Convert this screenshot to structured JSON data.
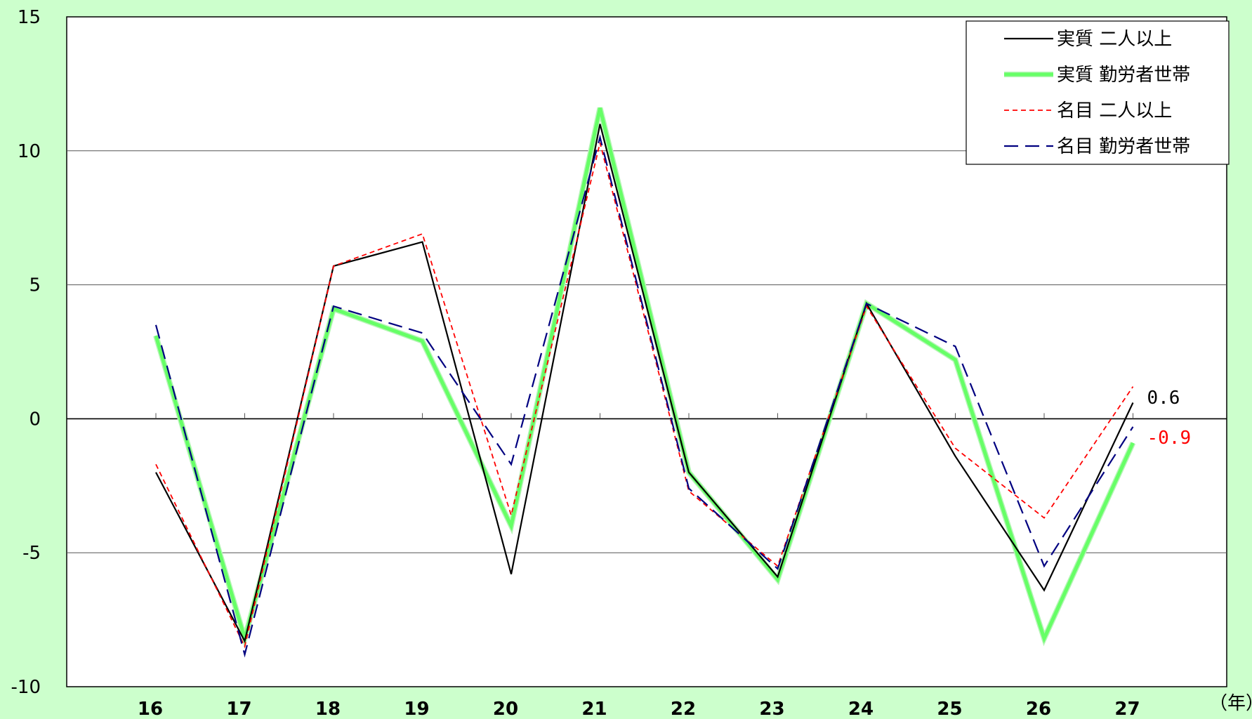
{
  "chart_data": {
    "type": "line",
    "title": "",
    "xlabel": "",
    "ylabel": "",
    "x_unit_label": "（年）",
    "categories": [
      "16",
      "17",
      "18",
      "19",
      "20",
      "21",
      "22",
      "23",
      "24",
      "25",
      "26",
      "27"
    ],
    "ylim": [
      -10,
      15
    ],
    "yticks": [
      15,
      10,
      5,
      0,
      -5,
      -10
    ],
    "grid": true,
    "legend_position": "top-right",
    "series": [
      {
        "name": "実質 二人以上",
        "color": "#000000",
        "style": "solid",
        "values": [
          -2.0,
          -8.3,
          5.7,
          6.6,
          -5.8,
          11.0,
          -2.0,
          -5.9,
          4.3,
          -1.4,
          -6.4,
          0.6
        ]
      },
      {
        "name": "実質 勤労者世帯",
        "color": "#66ff66",
        "style": "thick",
        "values": [
          3.1,
          -8.2,
          4.1,
          2.9,
          -4.0,
          11.6,
          -2.0,
          -6.0,
          4.3,
          2.2,
          -8.2,
          -0.9
        ]
      },
      {
        "name": "名目 二人以上",
        "color": "#ff0000",
        "style": "short-dash",
        "values": [
          -1.7,
          -8.5,
          5.7,
          6.9,
          -3.6,
          10.3,
          -2.7,
          -5.5,
          4.2,
          -1.1,
          -3.7,
          1.2
        ]
      },
      {
        "name": "名目 勤労者世帯",
        "color": "#000080",
        "style": "long-dash",
        "values": [
          3.5,
          -8.8,
          4.2,
          3.2,
          -1.7,
          10.5,
          -2.6,
          -5.6,
          4.3,
          2.7,
          -5.5,
          -0.3
        ]
      }
    ],
    "end_labels": [
      {
        "text": "0.6",
        "color": "#000000"
      },
      {
        "text": "-0.9",
        "color": "#ff0000"
      }
    ]
  }
}
